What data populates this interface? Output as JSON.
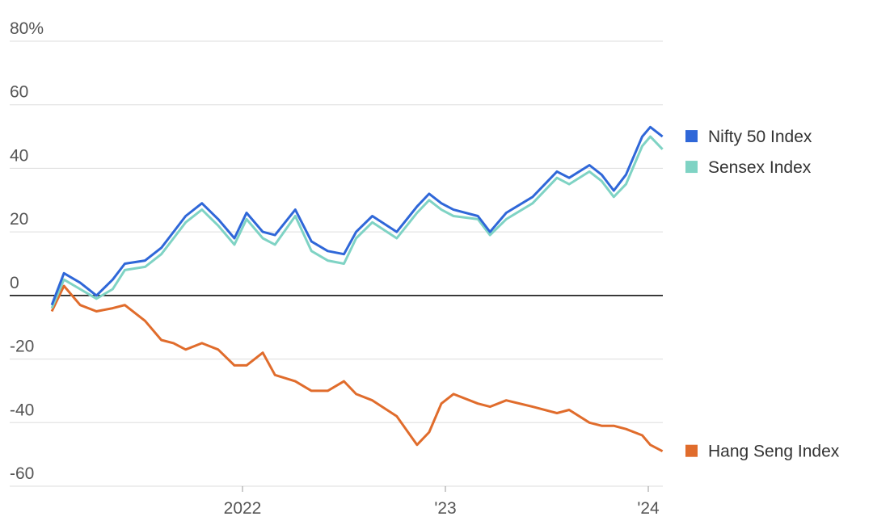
{
  "chart_data": {
    "type": "line",
    "x": [
      2021.06,
      2021.12,
      2021.2,
      2021.28,
      2021.36,
      2021.42,
      2021.52,
      2021.6,
      2021.66,
      2021.72,
      2021.8,
      2021.88,
      2021.96,
      2022.02,
      2022.1,
      2022.16,
      2022.26,
      2022.34,
      2022.42,
      2022.5,
      2022.56,
      2022.64,
      2022.76,
      2022.86,
      2022.92,
      2022.98,
      2023.04,
      2023.16,
      2023.22,
      2023.3,
      2023.43,
      2023.55,
      2023.61,
      2023.71,
      2023.77,
      2023.83,
      2023.89,
      2023.97,
      2024.01,
      2024.07
    ],
    "series": [
      {
        "name": "Nifty 50 Index",
        "color": "#2f67d8",
        "values": [
          -3,
          7,
          4,
          0,
          5,
          10,
          11,
          15,
          20,
          25,
          29,
          24,
          18,
          26,
          20,
          19,
          27,
          17,
          14,
          13,
          20,
          25,
          20,
          28,
          32,
          29,
          27,
          25,
          20,
          26,
          31,
          39,
          37,
          41,
          38,
          33,
          38,
          50,
          53,
          50
        ]
      },
      {
        "name": "Sensex Index",
        "color": "#7fd3c4",
        "values": [
          -4,
          5,
          2,
          -1,
          2,
          8,
          9,
          13,
          18,
          23,
          27,
          22,
          16,
          24,
          18,
          16,
          25,
          14,
          11,
          10,
          18,
          23,
          18,
          26,
          30,
          27,
          25,
          24,
          19,
          24,
          29,
          37,
          35,
          39,
          36,
          31,
          35,
          47,
          50,
          46
        ]
      },
      {
        "name": "Hang Seng Index",
        "color": "#e06c2c",
        "values": [
          -5,
          3,
          -3,
          -5,
          -4,
          -3,
          -8,
          -14,
          -15,
          -17,
          -15,
          -17,
          -22,
          -22,
          -18,
          -25,
          -27,
          -30,
          -30,
          -27,
          -31,
          -33,
          -38,
          -47,
          -43,
          -34,
          -31,
          -34,
          -35,
          -33,
          -35,
          -37,
          -36,
          -40,
          -41,
          -41,
          -42,
          -44,
          -47,
          -49
        ]
      }
    ],
    "xlim": [
      2021.03,
      2024.08
    ],
    "xticks": [
      {
        "value": 2022,
        "label": "2022"
      },
      {
        "value": 2023,
        "label": "'23"
      },
      {
        "value": 2024,
        "label": "'24"
      }
    ],
    "ylim": [
      -60,
      80
    ],
    "yticks": [
      -60,
      -40,
      -20,
      0,
      20,
      40,
      {
        "value": 80,
        "label": "80%"
      },
      60
    ],
    "grid": true,
    "legend": "right"
  }
}
